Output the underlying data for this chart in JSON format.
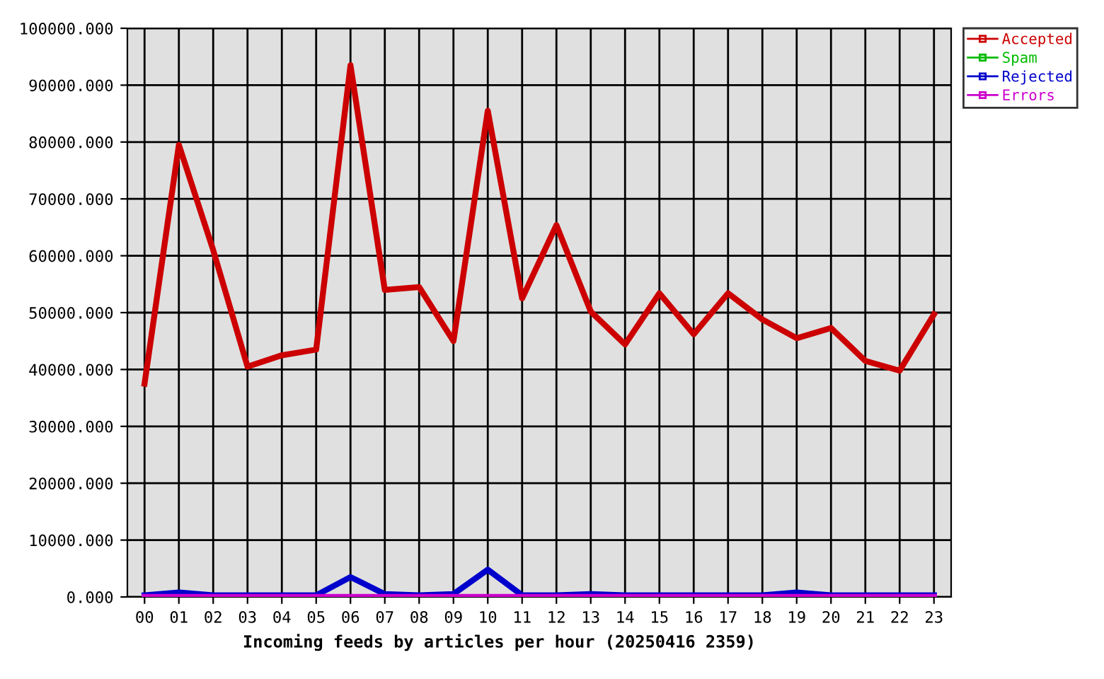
{
  "chart_data": {
    "type": "line",
    "xlabel": "Incoming feeds by articles per hour (20250416 2359)",
    "categories": [
      "00",
      "01",
      "02",
      "03",
      "04",
      "05",
      "06",
      "07",
      "08",
      "09",
      "10",
      "11",
      "12",
      "13",
      "14",
      "15",
      "16",
      "17",
      "18",
      "19",
      "20",
      "21",
      "22",
      "23"
    ],
    "series": [
      {
        "name": "Accepted",
        "color": "#cc0000",
        "values": [
          37500,
          79500,
          61000,
          40500,
          42500,
          43500,
          93500,
          54000,
          54500,
          45000,
          85500,
          52500,
          65400,
          50200,
          44400,
          53400,
          46200,
          53400,
          48800,
          45500,
          47300,
          41500,
          39800,
          49700
        ]
      },
      {
        "name": "Spam",
        "color": "#00bb00",
        "values": [
          null,
          null,
          null,
          null,
          null,
          null,
          null,
          null,
          null,
          null,
          null,
          null,
          null,
          null,
          null,
          null,
          null,
          null,
          null,
          null,
          null,
          null,
          null,
          null
        ]
      },
      {
        "name": "Rejected",
        "color": "#0000cc",
        "values": [
          300,
          800,
          300,
          300,
          300,
          300,
          3500,
          500,
          300,
          500,
          4800,
          300,
          300,
          500,
          300,
          300,
          300,
          300,
          300,
          800,
          300,
          300,
          300,
          300
        ]
      },
      {
        "name": "Errors",
        "color": "#cc00cc",
        "values": [
          0,
          0,
          0,
          0,
          0,
          0,
          0,
          0,
          0,
          0,
          0,
          0,
          0,
          0,
          0,
          0,
          0,
          0,
          0,
          0,
          0,
          0,
          0,
          0
        ]
      }
    ],
    "ylim": [
      0,
      100000
    ],
    "yticks": [
      {
        "value": 0,
        "label": "0.000"
      },
      {
        "value": 10000,
        "label": "10000.000"
      },
      {
        "value": 20000,
        "label": "20000.000"
      },
      {
        "value": 30000,
        "label": "30000.000"
      },
      {
        "value": 40000,
        "label": "40000.000"
      },
      {
        "value": 50000,
        "label": "50000.000"
      },
      {
        "value": 60000,
        "label": "60000.000"
      },
      {
        "value": 70000,
        "label": "70000.000"
      },
      {
        "value": 80000,
        "label": "80000.000"
      },
      {
        "value": 90000,
        "label": "90000.000"
      },
      {
        "value": 100000,
        "label": "100000.000"
      }
    ],
    "grid": true,
    "legend": "top right"
  }
}
